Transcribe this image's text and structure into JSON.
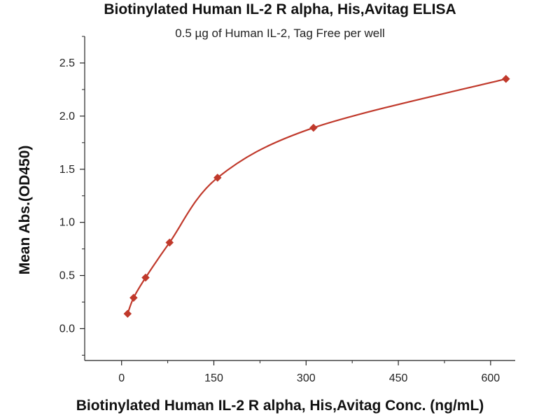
{
  "chart_data": {
    "type": "scatter",
    "title": "Biotinylated Human IL-2 R alpha, His,Avitag ELISA",
    "subtitle": "0.5 µg of Human IL-2, Tag Free per well",
    "xlabel": "Biotinylated Human IL-2 R alpha, His,Avitag Conc. (ng/mL)",
    "ylabel": "Mean Abs.(OD450)",
    "xlim": [
      -60,
      640
    ],
    "ylim": [
      -0.3,
      2.75
    ],
    "xticks": [
      "0",
      "150",
      "300",
      "450",
      "600"
    ],
    "yticks": [
      "0.0",
      "0.5",
      "1.0",
      "1.5",
      "2.0",
      "2.5"
    ],
    "grid": false,
    "marker_color": "#c0392b",
    "line_color": "#c0392b",
    "series": [
      {
        "x": [
          9.8,
          19.5,
          39,
          78,
          156,
          312,
          625
        ],
        "y": [
          0.14,
          0.29,
          0.48,
          0.81,
          1.42,
          1.89,
          2.35
        ]
      }
    ]
  }
}
